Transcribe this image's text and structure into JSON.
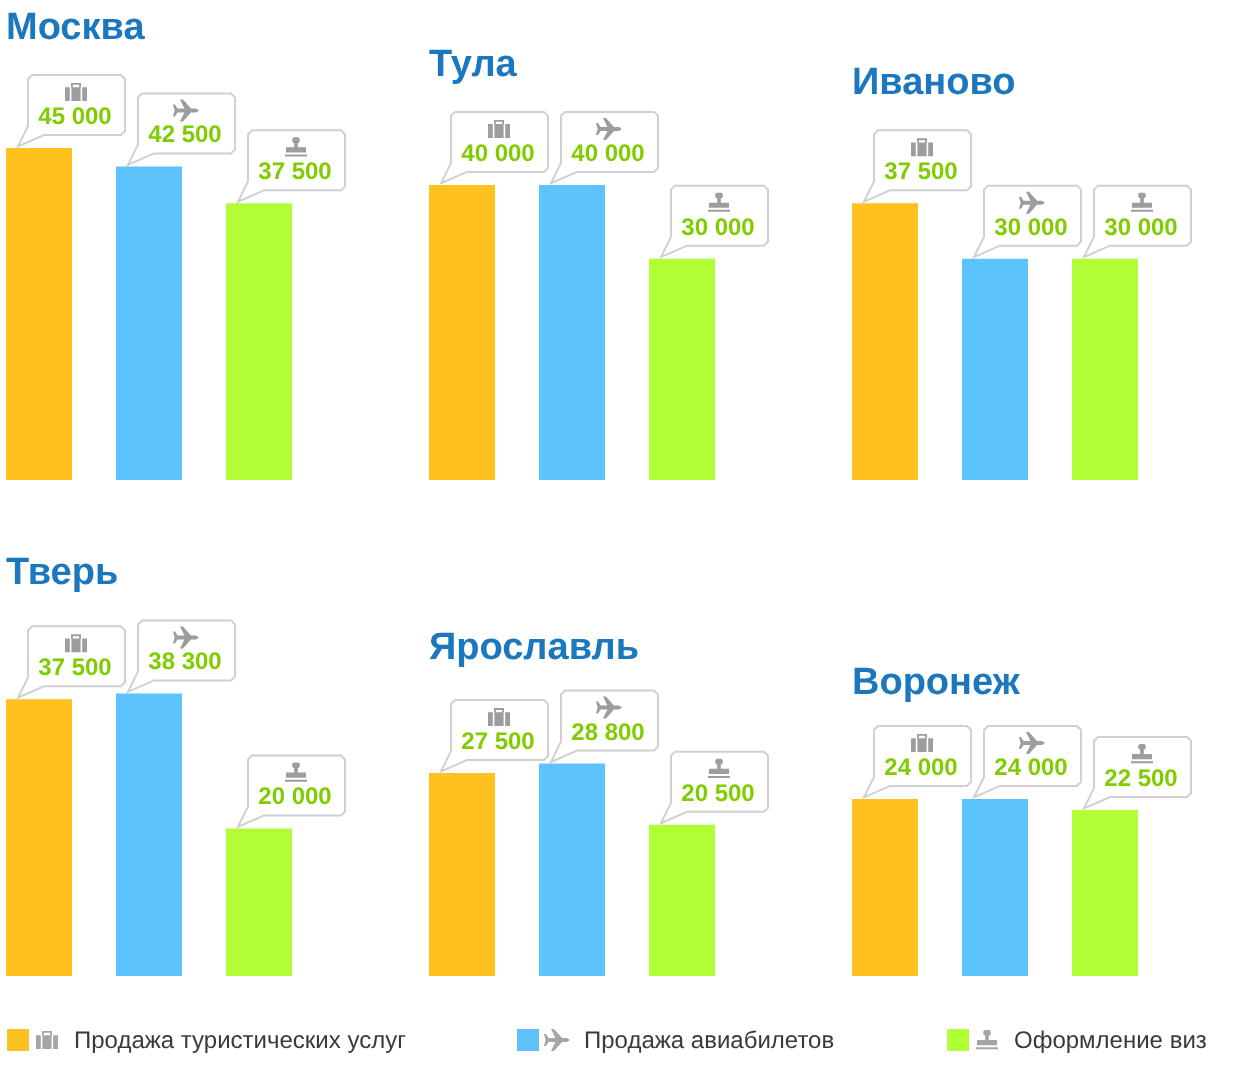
{
  "chart_data": [
    {
      "type": "bar",
      "title": "Москва",
      "categories": [
        null,
        null,
        null
      ],
      "stacked": true,
      "legend": "bottom",
      "series": [
        {
          "name": "Продажа туристических услуг",
          "color": "#fec11e",
          "values": [
            45000,
            null,
            null
          ],
          "value_labels": [
            "45 000",
            null,
            null
          ]
        },
        {
          "name": "Продажа авиабилетов",
          "color": "#5cc3fd",
          "values": [
            null,
            42500,
            null
          ],
          "value_labels": [
            null,
            "42 500",
            null
          ]
        },
        {
          "name": "Оформление виз",
          "color": "#b1fd36",
          "values": [
            null,
            null,
            37500
          ],
          "value_labels": [
            null,
            null,
            "37 500"
          ]
        }
      ]
    },
    {
      "type": "bar",
      "title": "Тула",
      "categories": [
        null,
        null,
        null
      ],
      "stacked": true,
      "series": [
        {
          "color": "#fec11e",
          "values": [
            40000,
            null,
            null
          ],
          "value_labels": [
            "40 000",
            null,
            null
          ]
        },
        {
          "color": "#5cc3fd",
          "values": [
            null,
            40000,
            null
          ],
          "value_labels": [
            null,
            "40 000",
            null
          ]
        },
        {
          "color": "#b1fd36",
          "values": [
            null,
            null,
            30000
          ],
          "value_labels": [
            null,
            null,
            "30 000"
          ]
        }
      ]
    },
    {
      "type": "bar",
      "title": "Иваново",
      "categories": [
        null,
        null,
        null
      ],
      "stacked": true,
      "series": [
        {
          "color": "#fec11e",
          "values": [
            37500,
            null,
            null
          ],
          "value_labels": [
            "37 500",
            null,
            null
          ]
        },
        {
          "color": "#5cc3fd",
          "values": [
            null,
            30000,
            null
          ],
          "value_labels": [
            null,
            "30 000",
            null
          ]
        },
        {
          "color": "#b1fd36",
          "values": [
            null,
            null,
            30000
          ],
          "value_labels": [
            null,
            null,
            "30 000"
          ]
        }
      ]
    },
    {
      "type": "bar",
      "title": "Тверь",
      "categories": [
        null,
        null,
        null
      ],
      "stacked": true,
      "series": [
        {
          "color": "#fec11e",
          "values": [
            37500,
            null,
            null
          ],
          "value_labels": [
            "37 500",
            null,
            null
          ]
        },
        {
          "color": "#5cc3fd",
          "values": [
            null,
            38300,
            null
          ],
          "value_labels": [
            null,
            "38 300",
            null
          ]
        },
        {
          "color": "#b1fd36",
          "values": [
            null,
            null,
            20000
          ],
          "value_labels": [
            null,
            null,
            "20 000"
          ]
        }
      ]
    },
    {
      "type": "bar",
      "title": "Ярославль",
      "categories": [
        null,
        null,
        null
      ],
      "stacked": true,
      "series": [
        {
          "color": "#fec11e",
          "values": [
            27500,
            null,
            null
          ],
          "value_labels": [
            "27 500",
            null,
            null
          ]
        },
        {
          "color": "#5cc3fd",
          "values": [
            null,
            28800,
            null
          ],
          "value_labels": [
            null,
            "28 800",
            null
          ]
        },
        {
          "color": "#b1fd36",
          "values": [
            null,
            null,
            20500
          ],
          "value_labels": [
            null,
            null,
            "20 500"
          ]
        }
      ]
    },
    {
      "type": "bar",
      "title": "Воронеж",
      "categories": [
        null,
        null,
        null
      ],
      "stacked": true,
      "series": [
        {
          "color": "#fec11e",
          "values": [
            24000,
            null,
            null
          ],
          "value_labels": [
            "24 000",
            null,
            null
          ]
        },
        {
          "color": "#5cc3fd",
          "values": [
            null,
            24000,
            null
          ],
          "value_labels": [
            null,
            "24 000",
            null
          ]
        },
        {
          "color": "#b1fd36",
          "values": [
            null,
            null,
            22500
          ],
          "value_labels": [
            null,
            null,
            "22 500"
          ]
        }
      ]
    }
  ]
}
